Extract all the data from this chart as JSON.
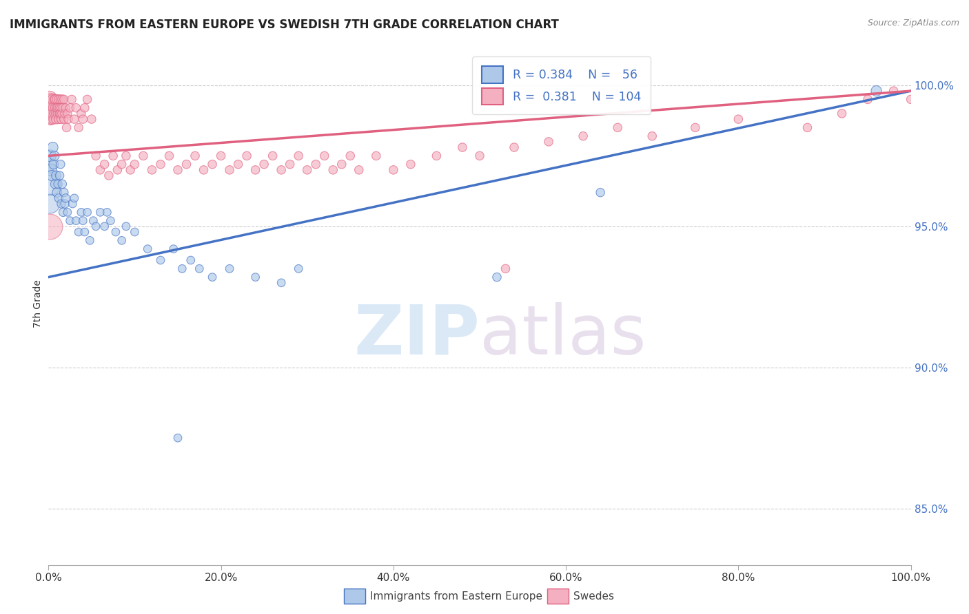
{
  "title": "IMMIGRANTS FROM EASTERN EUROPE VS SWEDISH 7TH GRADE CORRELATION CHART",
  "source": "Source: ZipAtlas.com",
  "ylabel": "7th Grade",
  "right_yticks": [
    85.0,
    90.0,
    95.0,
    100.0
  ],
  "legend_blue_label": "Immigrants from Eastern Europe",
  "legend_pink_label": "Swedes",
  "watermark_zip": "ZIP",
  "watermark_atlas": "atlas",
  "blue_color": "#adc8e8",
  "blue_line_color": "#4472c4",
  "pink_color": "#f4b0c0",
  "pink_line_color": "#e06080",
  "blue_scatter": [
    [
      0.001,
      97.2
    ],
    [
      0.002,
      97.5
    ],
    [
      0.003,
      97.0
    ],
    [
      0.004,
      96.8
    ],
    [
      0.005,
      97.8
    ],
    [
      0.006,
      97.2
    ],
    [
      0.007,
      97.5
    ],
    [
      0.008,
      96.5
    ],
    [
      0.009,
      96.8
    ],
    [
      0.01,
      96.2
    ],
    [
      0.011,
      96.5
    ],
    [
      0.012,
      96.0
    ],
    [
      0.013,
      96.8
    ],
    [
      0.014,
      97.2
    ],
    [
      0.015,
      95.8
    ],
    [
      0.016,
      96.5
    ],
    [
      0.017,
      95.5
    ],
    [
      0.018,
      96.2
    ],
    [
      0.019,
      95.8
    ],
    [
      0.02,
      96.0
    ],
    [
      0.022,
      95.5
    ],
    [
      0.025,
      95.2
    ],
    [
      0.028,
      95.8
    ],
    [
      0.03,
      96.0
    ],
    [
      0.032,
      95.2
    ],
    [
      0.035,
      94.8
    ],
    [
      0.038,
      95.5
    ],
    [
      0.04,
      95.2
    ],
    [
      0.042,
      94.8
    ],
    [
      0.045,
      95.5
    ],
    [
      0.048,
      94.5
    ],
    [
      0.052,
      95.2
    ],
    [
      0.055,
      95.0
    ],
    [
      0.06,
      95.5
    ],
    [
      0.065,
      95.0
    ],
    [
      0.068,
      95.5
    ],
    [
      0.072,
      95.2
    ],
    [
      0.078,
      94.8
    ],
    [
      0.085,
      94.5
    ],
    [
      0.09,
      95.0
    ],
    [
      0.1,
      94.8
    ],
    [
      0.115,
      94.2
    ],
    [
      0.13,
      93.8
    ],
    [
      0.145,
      94.2
    ],
    [
      0.155,
      93.5
    ],
    [
      0.165,
      93.8
    ],
    [
      0.175,
      93.5
    ],
    [
      0.19,
      93.2
    ],
    [
      0.21,
      93.5
    ],
    [
      0.24,
      93.2
    ],
    [
      0.27,
      93.0
    ],
    [
      0.29,
      93.5
    ],
    [
      0.15,
      87.5
    ],
    [
      0.52,
      93.2
    ],
    [
      0.64,
      96.2
    ],
    [
      0.96,
      99.8
    ]
  ],
  "blue_sizes": [
    200,
    150,
    150,
    120,
    120,
    100,
    100,
    100,
    100,
    100,
    80,
    80,
    80,
    80,
    80,
    80,
    80,
    80,
    80,
    80,
    70,
    70,
    70,
    70,
    70,
    70,
    70,
    70,
    70,
    70,
    70,
    70,
    70,
    70,
    70,
    70,
    70,
    70,
    70,
    70,
    70,
    70,
    70,
    70,
    70,
    70,
    70,
    70,
    70,
    70,
    70,
    70,
    70,
    80,
    80,
    120
  ],
  "pink_scatter": [
    [
      0.001,
      99.5
    ],
    [
      0.002,
      99.2
    ],
    [
      0.002,
      98.8
    ],
    [
      0.003,
      99.0
    ],
    [
      0.003,
      99.5
    ],
    [
      0.004,
      99.2
    ],
    [
      0.004,
      98.8
    ],
    [
      0.005,
      99.0
    ],
    [
      0.005,
      99.5
    ],
    [
      0.006,
      99.2
    ],
    [
      0.006,
      98.8
    ],
    [
      0.007,
      99.5
    ],
    [
      0.007,
      99.0
    ],
    [
      0.008,
      99.2
    ],
    [
      0.008,
      99.5
    ],
    [
      0.009,
      99.0
    ],
    [
      0.009,
      98.8
    ],
    [
      0.01,
      99.2
    ],
    [
      0.01,
      99.5
    ],
    [
      0.011,
      99.0
    ],
    [
      0.011,
      99.2
    ],
    [
      0.012,
      99.5
    ],
    [
      0.012,
      98.8
    ],
    [
      0.013,
      99.0
    ],
    [
      0.013,
      99.2
    ],
    [
      0.014,
      99.5
    ],
    [
      0.014,
      99.0
    ],
    [
      0.015,
      98.8
    ],
    [
      0.015,
      99.2
    ],
    [
      0.016,
      99.5
    ],
    [
      0.016,
      99.0
    ],
    [
      0.017,
      99.2
    ],
    [
      0.018,
      98.8
    ],
    [
      0.018,
      99.5
    ],
    [
      0.019,
      99.0
    ],
    [
      0.02,
      99.2
    ],
    [
      0.021,
      98.5
    ],
    [
      0.022,
      99.0
    ],
    [
      0.023,
      98.8
    ],
    [
      0.025,
      99.2
    ],
    [
      0.027,
      99.5
    ],
    [
      0.03,
      98.8
    ],
    [
      0.032,
      99.2
    ],
    [
      0.035,
      98.5
    ],
    [
      0.038,
      99.0
    ],
    [
      0.04,
      98.8
    ],
    [
      0.042,
      99.2
    ],
    [
      0.045,
      99.5
    ],
    [
      0.05,
      98.8
    ],
    [
      0.055,
      97.5
    ],
    [
      0.06,
      97.0
    ],
    [
      0.065,
      97.2
    ],
    [
      0.07,
      96.8
    ],
    [
      0.075,
      97.5
    ],
    [
      0.08,
      97.0
    ],
    [
      0.085,
      97.2
    ],
    [
      0.09,
      97.5
    ],
    [
      0.095,
      97.0
    ],
    [
      0.1,
      97.2
    ],
    [
      0.11,
      97.5
    ],
    [
      0.12,
      97.0
    ],
    [
      0.13,
      97.2
    ],
    [
      0.14,
      97.5
    ],
    [
      0.15,
      97.0
    ],
    [
      0.16,
      97.2
    ],
    [
      0.17,
      97.5
    ],
    [
      0.18,
      97.0
    ],
    [
      0.19,
      97.2
    ],
    [
      0.2,
      97.5
    ],
    [
      0.21,
      97.0
    ],
    [
      0.22,
      97.2
    ],
    [
      0.23,
      97.5
    ],
    [
      0.24,
      97.0
    ],
    [
      0.25,
      97.2
    ],
    [
      0.26,
      97.5
    ],
    [
      0.27,
      97.0
    ],
    [
      0.28,
      97.2
    ],
    [
      0.29,
      97.5
    ],
    [
      0.3,
      97.0
    ],
    [
      0.31,
      97.2
    ],
    [
      0.32,
      97.5
    ],
    [
      0.33,
      97.0
    ],
    [
      0.34,
      97.2
    ],
    [
      0.35,
      97.5
    ],
    [
      0.36,
      97.0
    ],
    [
      0.38,
      97.5
    ],
    [
      0.4,
      97.0
    ],
    [
      0.42,
      97.2
    ],
    [
      0.45,
      97.5
    ],
    [
      0.48,
      97.8
    ],
    [
      0.5,
      97.5
    ],
    [
      0.54,
      97.8
    ],
    [
      0.58,
      98.0
    ],
    [
      0.62,
      98.2
    ],
    [
      0.66,
      98.5
    ],
    [
      0.7,
      98.2
    ],
    [
      0.75,
      98.5
    ],
    [
      0.8,
      98.8
    ],
    [
      0.88,
      98.5
    ],
    [
      0.92,
      99.0
    ],
    [
      0.53,
      93.5
    ],
    [
      0.95,
      99.5
    ],
    [
      0.98,
      99.8
    ],
    [
      1.0,
      99.5
    ]
  ],
  "pink_sizes": [
    300,
    200,
    150,
    180,
    150,
    150,
    120,
    130,
    120,
    120,
    100,
    100,
    100,
    100,
    100,
    100,
    100,
    100,
    100,
    100,
    90,
    90,
    90,
    90,
    90,
    90,
    90,
    90,
    90,
    90,
    90,
    90,
    80,
    80,
    80,
    80,
    80,
    80,
    80,
    80,
    80,
    80,
    80,
    80,
    80,
    80,
    80,
    80,
    80,
    80,
    80,
    80,
    80,
    80,
    80,
    80,
    80,
    80,
    80,
    80,
    80,
    80,
    80,
    80,
    80,
    80,
    80,
    80,
    80,
    80,
    80,
    80,
    80,
    80,
    80,
    80,
    80,
    80,
    80,
    80,
    80,
    80,
    80,
    80,
    80,
    80,
    80,
    80,
    80,
    80,
    80,
    80,
    80,
    80,
    80,
    80,
    80,
    80,
    80,
    80,
    80,
    80,
    80,
    80
  ],
  "blue_line": [
    [
      0.0,
      93.2
    ],
    [
      1.0,
      99.8
    ]
  ],
  "pink_line": [
    [
      0.0,
      97.5
    ],
    [
      1.0,
      99.8
    ]
  ],
  "xlim": [
    0.0,
    1.0
  ],
  "ylim": [
    83.0,
    101.5
  ],
  "xticks": [
    0.0,
    0.2,
    0.4,
    0.6,
    0.8,
    1.0
  ],
  "xtick_labels": [
    "0.0%",
    "20.0%",
    "40.0%",
    "60.0%",
    "80.0%",
    "100.0%"
  ]
}
